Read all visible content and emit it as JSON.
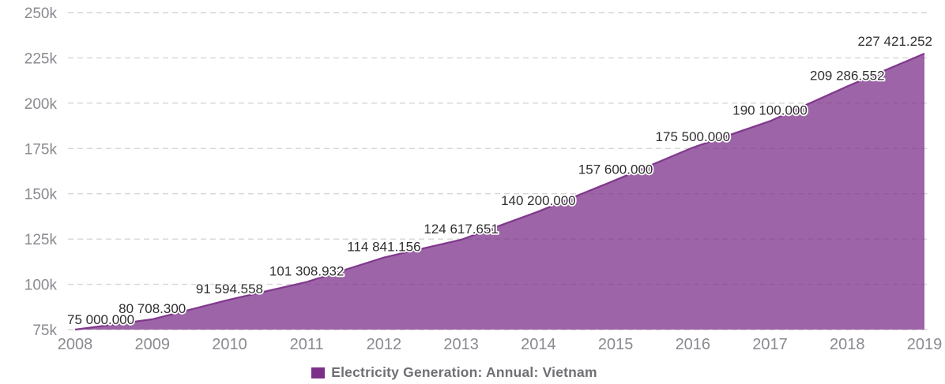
{
  "chart_data": {
    "type": "area",
    "title": "",
    "xlabel": "",
    "ylabel": "",
    "categories": [
      "2008",
      "2009",
      "2010",
      "2011",
      "2012",
      "2013",
      "2014",
      "2015",
      "2016",
      "2017",
      "2018",
      "2019"
    ],
    "series": [
      {
        "name": "Electricity Generation: Annual: Vietnam",
        "color": "#7b2f88",
        "fill_opacity": 0.74,
        "values": [
          75000.0,
          80708.3,
          91594.558,
          101308.932,
          114841.156,
          124617.651,
          140200.0,
          157600.0,
          175500.0,
          190100.0,
          209286.552,
          227421.252
        ],
        "data_labels": [
          "75 000.000",
          "80 708.300",
          "91 594.558",
          "101 308.932",
          "114 841.156",
          "124 617.651",
          "140 200.000",
          "157 600.000",
          "175 500.000",
          "190 100.000",
          "209 286.552",
          "227 421.252"
        ]
      }
    ],
    "ylim": [
      75000,
      250000
    ],
    "yticks": [
      {
        "value": 75000,
        "label": "75k"
      },
      {
        "value": 100000,
        "label": "100k"
      },
      {
        "value": 125000,
        "label": "125k"
      },
      {
        "value": 150000,
        "label": "150k"
      },
      {
        "value": 175000,
        "label": "175k"
      },
      {
        "value": 200000,
        "label": "200k"
      },
      {
        "value": 225000,
        "label": "225k"
      },
      {
        "value": 250000,
        "label": "250k"
      }
    ],
    "grid": {
      "horizontal": true,
      "style": "dashed",
      "color": "#d6d6d6"
    },
    "legend_position": "bottom"
  },
  "legend": {
    "label": "Electricity Generation: Annual: Vietnam",
    "swatch_color": "#7b2f88"
  },
  "colors": {
    "background": "#ffffff",
    "tick_text": "#8a8a91",
    "data_label_text": "#2f2f2f",
    "data_label_halo": "#ffffff",
    "legend_text": "#6f6f74"
  }
}
